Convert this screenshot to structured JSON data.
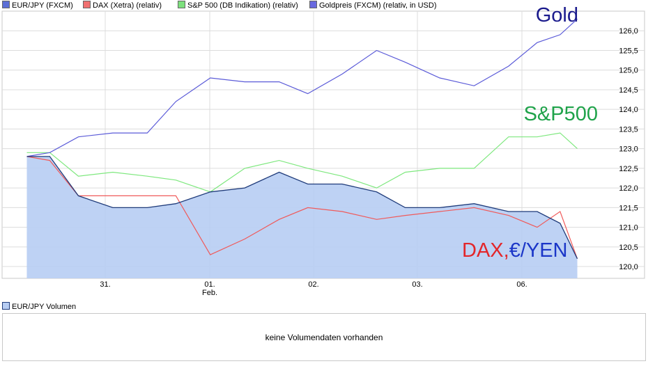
{
  "legend": [
    {
      "label": "EUR/JPY (FXCM)",
      "color": "#5c6fd6"
    },
    {
      "label": "DAX (Xetra) (relativ)",
      "color": "#f07070"
    },
    {
      "label": "S&P 500 (DB Indikation) (relativ)",
      "color": "#7de07d"
    },
    {
      "label": "Goldpreis (FXCM) (relativ, in USD)",
      "color": "#6a6ae0"
    }
  ],
  "annotations": {
    "gold": "Gold",
    "sp500": "S&P500",
    "dax": "DAX,",
    "euryen": "€/YEN"
  },
  "colors": {
    "gold": "#1a1a8c",
    "sp500": "#1fa34a",
    "dax": "#e3262a",
    "euryen": "#1b36c8",
    "eurjpy_line": "#1f3b7a",
    "eurjpy_fill": "#b7cdf3",
    "dax_line": "#f05a5a",
    "sp_line": "#7ee87e",
    "gold_line": "#5a5ad8",
    "grid": "#dcdcdc"
  },
  "volume": {
    "legend_label": "EUR/JPY Volumen",
    "message": "keine Volumendaten vorhanden"
  },
  "chart_data": {
    "type": "line",
    "x_labels": [
      "31.",
      "01.\nFeb.",
      "02.",
      "03.",
      "06."
    ],
    "y_ticks": [
      "126,0",
      "125,5",
      "125,0",
      "124,5",
      "124,0",
      "123,5",
      "123,0",
      "122,5",
      "122,0",
      "121,5",
      "121,0",
      "120,5",
      "120,0"
    ],
    "ylim": [
      119.7,
      126.5
    ],
    "x_positions": [
      0.02,
      0.06,
      0.11,
      0.17,
      0.23,
      0.28,
      0.34,
      0.4,
      0.46,
      0.51,
      0.57,
      0.63,
      0.68,
      0.74,
      0.8,
      0.86,
      0.91,
      0.95,
      0.98
    ],
    "series": [
      {
        "name": "EUR/JPY (FXCM)",
        "values": [
          122.8,
          122.8,
          121.8,
          121.5,
          121.5,
          121.6,
          121.9,
          122.0,
          122.4,
          122.1,
          122.1,
          121.9,
          121.5,
          121.5,
          121.6,
          121.4,
          121.4,
          121.1,
          120.2
        ]
      },
      {
        "name": "DAX (Xetra) (relativ)",
        "values": [
          122.8,
          122.7,
          121.8,
          121.8,
          121.8,
          121.8,
          120.3,
          120.7,
          121.2,
          121.5,
          121.4,
          121.2,
          121.3,
          121.4,
          121.5,
          121.3,
          121.0,
          121.4,
          120.2
        ]
      },
      {
        "name": "S&P 500 (DB Indikation) (relativ)",
        "values": [
          122.9,
          122.9,
          122.3,
          122.4,
          122.3,
          122.2,
          121.9,
          122.5,
          122.7,
          122.5,
          122.3,
          122.0,
          122.4,
          122.5,
          122.5,
          123.3,
          123.3,
          123.4,
          123.0
        ]
      },
      {
        "name": "Goldpreis (FXCM) (relativ, in USD)",
        "values": [
          122.8,
          122.9,
          123.3,
          123.4,
          123.4,
          124.2,
          124.8,
          124.7,
          124.7,
          124.4,
          124.9,
          125.5,
          125.2,
          124.8,
          124.6,
          125.1,
          125.7,
          125.9,
          126.3
        ]
      }
    ]
  }
}
